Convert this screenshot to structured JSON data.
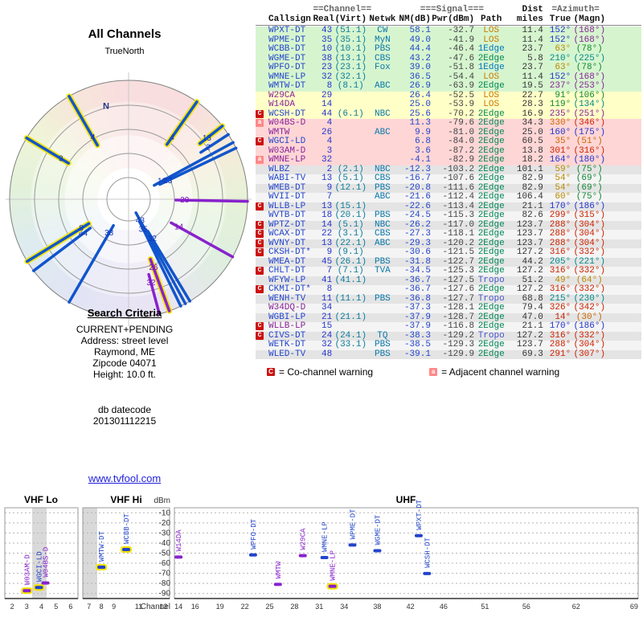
{
  "colors": {
    "accent_blue": "#2244cc",
    "accent_purple": "#8822cc",
    "warn_co": "#cc1111",
    "warn_adj": "#ff8888",
    "row_bg": {
      "grn": "#d6f5cf",
      "yel": "#ffffc8",
      "pnk": "#ffd6d6",
      "gry": "#e4e4e4",
      "wht": "#f4f4f4"
    },
    "text": {
      "blu": "#2233cc",
      "pur": "#882299",
      "red": "#cc2200",
      "org": "#cc6600",
      "gld": "#bb8800",
      "grn": "#118833",
      "tea": "#008888"
    },
    "path": {
      "LOS": "#cc7a00",
      "1Edge": "#0077bb",
      "2Edge": "#008855",
      "Tropo": "#4455cc"
    }
  },
  "chart_data": [
    {
      "type": "radar",
      "title": "All Channels",
      "subtitle": "TrueNorth",
      "north": "N",
      "note": "lines start at outer edge at station true azimuth; longer line = stronger signal (NM dB)",
      "spokes": [
        {
          "l": "43",
          "a": 151.5,
          "nm": 58.1,
          "c": "b",
          "h": 0
        },
        {
          "l": "35",
          "a": 154.0,
          "nm": 49.0,
          "c": "b",
          "h": 0
        },
        {
          "l": "32",
          "a": 149.0,
          "nm": 36.5,
          "c": "b",
          "h": 0
        },
        {
          "l": "10",
          "a": 61.5,
          "nm": 44.4,
          "c": "b",
          "h": 0
        },
        {
          "l": "23",
          "a": 64.5,
          "nm": 39.0,
          "c": "b",
          "h": 0
        },
        {
          "l": "38",
          "a": 210.0,
          "nm": 43.2,
          "c": "b",
          "h": 0
        },
        {
          "l": "44",
          "a": 233.0,
          "nm": 25.6,
          "c": "b",
          "h": 0
        },
        {
          "l": "8",
          "a": 238.5,
          "nm": 26.9,
          "c": "b",
          "h": 1
        },
        {
          "l": "29",
          "a": 91.0,
          "nm": 26.4,
          "c": "p",
          "h": 0
        },
        {
          "l": "14",
          "a": 119.0,
          "nm": 25.0,
          "c": "p",
          "h": 0
        },
        {
          "l": "4",
          "a": 330.0,
          "nm": 11.3,
          "c": "b",
          "h": 1
        },
        {
          "l": "26",
          "a": 160.0,
          "nm": 9.9,
          "c": "p",
          "h": 1
        },
        {
          "l": "4",
          "a": 35.0,
          "nm": 6.8,
          "c": "b",
          "h": 1
        },
        {
          "l": "3",
          "a": 301.0,
          "nm": 3.6,
          "c": "b",
          "h": 1
        },
        {
          "l": "32",
          "a": 165.0,
          "nm": -4.1,
          "c": "p",
          "h": 0
        },
        {
          "l": "2",
          "a": 57.0,
          "nm": -12.3,
          "c": "b",
          "h": 0
        },
        {
          "l": "13",
          "a": 52.0,
          "nm": -16.7,
          "c": "b",
          "h": 1
        }
      ]
    },
    {
      "type": "scatter",
      "bands": [
        "VHF Lo",
        "VHF Hi",
        "UHF"
      ],
      "ylabel": "dBm",
      "xlabel": "Channel",
      "ylim": [
        -95,
        -5
      ],
      "y_ticks": [
        -10,
        -20,
        -30,
        -40,
        -50,
        -60,
        -70,
        -80,
        -90
      ],
      "x_ticks": {
        "lo": [
          2,
          3,
          4,
          5,
          6
        ],
        "hi": [
          7,
          8,
          9,
          11,
          13
        ],
        "uhf": [
          14,
          16,
          19,
          22,
          25,
          28,
          31,
          34,
          38,
          42,
          46,
          51,
          56,
          62,
          69
        ]
      },
      "points": [
        {
          "cs": "W03AM-D",
          "ch": 3,
          "db": -87.2,
          "b": "lo",
          "c": "pur",
          "hl": 1,
          "dx": 0
        },
        {
          "cs": "WGCI-LD",
          "ch": 4,
          "db": -84.0,
          "b": "lo",
          "c": "blu",
          "hl": 1,
          "dx": -3
        },
        {
          "cs": "W04BS-D",
          "ch": 4,
          "db": -79.6,
          "b": "lo",
          "c": "pur",
          "hl": 0,
          "dx": 5
        },
        {
          "cs": "WMTW-DT",
          "ch": 8,
          "db": -63.9,
          "b": "hi",
          "c": "blu",
          "hl": 1,
          "dx": 0
        },
        {
          "cs": "WCBB-DT",
          "ch": 10,
          "db": -46.4,
          "b": "hi",
          "c": "blu",
          "hl": 1,
          "dx": 0
        },
        {
          "cs": "W14DA",
          "ch": 14,
          "db": -53.9,
          "b": "uhf",
          "c": "pur",
          "hl": 0,
          "dx": 0
        },
        {
          "cs": "WPFO-DT",
          "ch": 23,
          "db": -51.8,
          "b": "uhf",
          "c": "blu",
          "hl": 0,
          "dx": 0
        },
        {
          "cs": "WMTW",
          "ch": 26,
          "db": -81.0,
          "b": "uhf",
          "c": "pur",
          "hl": 0,
          "dx": 0
        },
        {
          "cs": "W29CA",
          "ch": 29,
          "db": -52.5,
          "b": "uhf",
          "c": "pur",
          "hl": 0,
          "dx": 0
        },
        {
          "cs": "WMNE-LP",
          "ch": 32,
          "db": -54.4,
          "b": "uhf",
          "c": "blu",
          "hl": 0,
          "dx": -4
        },
        {
          "cs": "WMNE-LP",
          "ch": 32,
          "db": -82.9,
          "b": "uhf",
          "c": "pur",
          "hl": 1,
          "dx": 6
        },
        {
          "cs": "WPME-DT",
          "ch": 35,
          "db": -41.9,
          "b": "uhf",
          "c": "blu",
          "hl": 0,
          "dx": 0
        },
        {
          "cs": "WGME-DT",
          "ch": 38,
          "db": -47.6,
          "b": "uhf",
          "c": "blu",
          "hl": 0,
          "dx": 0
        },
        {
          "cs": "WPXT-DT",
          "ch": 43,
          "db": -32.7,
          "b": "uhf",
          "c": "blu",
          "hl": 0,
          "dx": 0
        },
        {
          "cs": "WCSH-DT",
          "ch": 44,
          "db": -70.2,
          "b": "uhf",
          "c": "blu",
          "hl": 0,
          "dx": 0
        }
      ]
    }
  ],
  "search": {
    "heading": "Search Criteria",
    "lines": [
      "CURRENT+PENDING",
      "Address: street level",
      "Raymond, ME",
      "Zipcode 04071",
      "Height: 10.0 ft."
    ],
    "db_label": "db datecode",
    "db_code": "201301112215"
  },
  "link": {
    "text": "www.tvfool.com"
  },
  "legend": {
    "co_sym": "C",
    "co_text": "= Co-channel warning",
    "adj_sym": "a",
    "adj_text": "= Adjacent channel warning"
  },
  "table": {
    "group_headers": [
      "==Channel==",
      "===Signal===",
      "Dist",
      "=Azimuth="
    ],
    "columns": [
      "Callsign",
      "Real",
      "(Virt)",
      "Netwk",
      "NM(dB)",
      "Pwr(dBm)",
      "Path",
      "miles",
      "True",
      "(Magn)"
    ],
    "rows": [
      {
        "w": "",
        "cs": "WPXT-DT",
        "ac": false,
        "real": "43",
        "virt": "(51.1)",
        "net": "CW",
        "nm": "58.1",
        "pwr": "-32.7",
        "path": "LOS",
        "dist": "11.4",
        "tru": "152°",
        "mag": "(168°)",
        "tc": "blu",
        "mc": "pur",
        "bg": "grn"
      },
      {
        "w": "",
        "cs": "WPME-DT",
        "ac": false,
        "real": "35",
        "virt": "(35.1)",
        "net": "MyN",
        "nm": "49.0",
        "pwr": "-41.9",
        "path": "LOS",
        "dist": "11.4",
        "tru": "152°",
        "mag": "(168°)",
        "tc": "blu",
        "mc": "pur",
        "bg": "grn"
      },
      {
        "w": "",
        "cs": "WCBB-DT",
        "ac": false,
        "real": "10",
        "virt": "(10.1)",
        "net": "PBS",
        "nm": "44.4",
        "pwr": "-46.4",
        "path": "1Edge",
        "dist": "23.7",
        "tru": "63°",
        "mag": "(78°)",
        "tc": "gld",
        "mc": "grn",
        "bg": "grn"
      },
      {
        "w": "",
        "cs": "WGME-DT",
        "ac": false,
        "real": "38",
        "virt": "(13.1)",
        "net": "CBS",
        "nm": "43.2",
        "pwr": "-47.6",
        "path": "2Edge",
        "dist": "5.8",
        "tru": "210°",
        "mag": "(225°)",
        "tc": "tea",
        "mc": "tea",
        "bg": "grn"
      },
      {
        "w": "",
        "cs": "WPFO-DT",
        "ac": false,
        "real": "23",
        "virt": "(23.1)",
        "net": "Fox",
        "nm": "39.0",
        "pwr": "-51.8",
        "path": "1Edge",
        "dist": "23.7",
        "tru": "63°",
        "mag": "(78°)",
        "tc": "gld",
        "mc": "grn",
        "bg": "grn"
      },
      {
        "w": "",
        "cs": "WMNE-LP",
        "ac": false,
        "real": "32",
        "virt": "(32.1)",
        "net": "",
        "nm": "36.5",
        "pwr": "-54.4",
        "path": "LOS",
        "dist": "11.4",
        "tru": "152°",
        "mag": "(168°)",
        "tc": "blu",
        "mc": "pur",
        "bg": "grn"
      },
      {
        "w": "",
        "cs": "WMTW-DT",
        "ac": false,
        "real": "8",
        "virt": "(8.1)",
        "net": "ABC",
        "nm": "26.9",
        "pwr": "-63.9",
        "path": "2Edge",
        "dist": "19.5",
        "tru": "237°",
        "mag": "(253°)",
        "tc": "pur",
        "mc": "pur",
        "bg": "grn"
      },
      {
        "w": "",
        "cs": "W29CA",
        "ac": true,
        "real": "29",
        "virt": "",
        "net": "",
        "nm": "26.4",
        "pwr": "-52.5",
        "path": "LOS",
        "dist": "22.7",
        "tru": "91°",
        "mag": "(106°)",
        "tc": "grn",
        "mc": "grn",
        "bg": "yel"
      },
      {
        "w": "",
        "cs": "W14DA",
        "ac": true,
        "real": "14",
        "virt": "",
        "net": "",
        "nm": "25.0",
        "pwr": "-53.9",
        "path": "LOS",
        "dist": "28.3",
        "tru": "119°",
        "mag": "(134°)",
        "tc": "grn",
        "mc": "tea",
        "bg": "yel"
      },
      {
        "w": "C",
        "cs": "WCSH-DT",
        "ac": false,
        "real": "44",
        "virt": "(6.1)",
        "net": "NBC",
        "nm": "25.6",
        "pwr": "-70.2",
        "path": "2Edge",
        "dist": "16.9",
        "tru": "235°",
        "mag": "(251°)",
        "tc": "pur",
        "mc": "pur",
        "bg": "yel"
      },
      {
        "w": "a",
        "cs": "W04BS-D",
        "ac": true,
        "real": "4",
        "virt": "",
        "net": "",
        "nm": "11.3",
        "pwr": "-79.6",
        "path": "2Edge",
        "dist": "34.3",
        "tru": "330°",
        "mag": "(346°)",
        "tc": "org",
        "mc": "red",
        "bg": "pnk"
      },
      {
        "w": "",
        "cs": "WMTW",
        "ac": true,
        "real": "26",
        "virt": "",
        "net": "ABC",
        "nm": "9.9",
        "pwr": "-81.0",
        "path": "2Edge",
        "dist": "25.0",
        "tru": "160°",
        "mag": "(175°)",
        "tc": "blu",
        "mc": "blu",
        "bg": "pnk"
      },
      {
        "w": "C",
        "cs": "WGCI-LD",
        "ac": false,
        "real": "4",
        "virt": "",
        "net": "",
        "nm": "6.8",
        "pwr": "-84.0",
        "path": "2Edge",
        "dist": "60.5",
        "tru": "35°",
        "mag": "(51°)",
        "tc": "org",
        "mc": "org",
        "bg": "pnk"
      },
      {
        "w": "",
        "cs": "W03AM-D",
        "ac": true,
        "real": "3",
        "virt": "",
        "net": "",
        "nm": "3.6",
        "pwr": "-87.2",
        "path": "2Edge",
        "dist": "13.8",
        "tru": "301°",
        "mag": "(316°)",
        "tc": "red",
        "mc": "red",
        "bg": "pnk"
      },
      {
        "w": "a",
        "cs": "WMNE-LP",
        "ac": true,
        "real": "32",
        "virt": "",
        "net": "",
        "nm": "-4.1",
        "pwr": "-82.9",
        "path": "2Edge",
        "dist": "18.2",
        "tru": "164°",
        "mag": "(180°)",
        "tc": "blu",
        "mc": "blu",
        "bg": "pnk"
      },
      {
        "w": "",
        "cs": "WLBZ",
        "ac": false,
        "real": "2",
        "virt": "(2.1)",
        "net": "NBC",
        "nm": "-12.3",
        "pwr": "-103.2",
        "path": "2Edge",
        "dist": "101.1",
        "tru": "59°",
        "mag": "(75°)",
        "tc": "gld",
        "mc": "grn",
        "bg": "gry"
      },
      {
        "w": "",
        "cs": "WABI-TV",
        "ac": false,
        "real": "13",
        "virt": "(5.1)",
        "net": "CBS",
        "nm": "-16.7",
        "pwr": "-107.6",
        "path": "2Edge",
        "dist": "82.9",
        "tru": "54°",
        "mag": "(69°)",
        "tc": "gld",
        "mc": "grn",
        "bg": "wht"
      },
      {
        "w": "",
        "cs": "WMEB-DT",
        "ac": false,
        "real": "9",
        "virt": "(12.1)",
        "net": "PBS",
        "nm": "-20.8",
        "pwr": "-111.6",
        "path": "2Edge",
        "dist": "82.9",
        "tru": "54°",
        "mag": "(69°)",
        "tc": "gld",
        "mc": "grn",
        "bg": "gry"
      },
      {
        "w": "",
        "cs": "WVII-DT",
        "ac": false,
        "real": "7",
        "virt": "",
        "net": "ABC",
        "nm": "-21.6",
        "pwr": "-112.4",
        "path": "2Edge",
        "dist": "106.4",
        "tru": "60°",
        "mag": "(75°)",
        "tc": "gld",
        "mc": "grn",
        "bg": "wht"
      },
      {
        "w": "C",
        "cs": "WLLB-LP",
        "ac": false,
        "real": "13",
        "virt": "(15.1)",
        "net": "",
        "nm": "-22.6",
        "pwr": "-113.4",
        "path": "2Edge",
        "dist": "21.1",
        "tru": "170°",
        "mag": "(186°)",
        "tc": "blu",
        "mc": "blu",
        "bg": "gry"
      },
      {
        "w": "",
        "cs": "WVTB-DT",
        "ac": false,
        "real": "18",
        "virt": "(20.1)",
        "net": "PBS",
        "nm": "-24.5",
        "pwr": "-115.3",
        "path": "2Edge",
        "dist": "82.6",
        "tru": "299°",
        "mag": "(315°)",
        "tc": "red",
        "mc": "red",
        "bg": "wht"
      },
      {
        "w": "C",
        "cs": "WPTZ-DT",
        "ac": false,
        "real": "14",
        "virt": "(5.1)",
        "net": "NBC",
        "nm": "-26.2",
        "pwr": "-117.0",
        "path": "2Edge",
        "dist": "123.7",
        "tru": "288°",
        "mag": "(304°)",
        "tc": "red",
        "mc": "red",
        "bg": "gry"
      },
      {
        "w": "C",
        "cs": "WCAX-DT",
        "ac": false,
        "real": "22",
        "virt": "(3.1)",
        "net": "CBS",
        "nm": "-27.3",
        "pwr": "-118.1",
        "path": "2Edge",
        "dist": "123.7",
        "tru": "288°",
        "mag": "(304°)",
        "tc": "red",
        "mc": "red",
        "bg": "wht"
      },
      {
        "w": "C",
        "cs": "WVNY-DT",
        "ac": false,
        "real": "13",
        "virt": "(22.1)",
        "net": "ABC",
        "nm": "-29.3",
        "pwr": "-120.2",
        "path": "2Edge",
        "dist": "123.7",
        "tru": "288°",
        "mag": "(304°)",
        "tc": "red",
        "mc": "red",
        "bg": "gry"
      },
      {
        "w": "C",
        "cs": "CKSH-DT*",
        "ac": false,
        "real": "9",
        "virt": "(9.1)",
        "net": "",
        "nm": "-30.6",
        "pwr": "-121.5",
        "path": "2Edge",
        "dist": "127.2",
        "tru": "316°",
        "mag": "(332°)",
        "tc": "red",
        "mc": "red",
        "bg": "wht"
      },
      {
        "w": "",
        "cs": "WMEA-DT",
        "ac": false,
        "real": "45",
        "virt": "(26.1)",
        "net": "PBS",
        "nm": "-31.8",
        "pwr": "-122.7",
        "path": "2Edge",
        "dist": "44.2",
        "tru": "205°",
        "mag": "(221°)",
        "tc": "tea",
        "mc": "tea",
        "bg": "gry"
      },
      {
        "w": "C",
        "cs": "CHLT-DT",
        "ac": false,
        "real": "7",
        "virt": "(7.1)",
        "net": "TVA",
        "nm": "-34.5",
        "pwr": "-125.3",
        "path": "2Edge",
        "dist": "127.2",
        "tru": "316°",
        "mag": "(332°)",
        "tc": "red",
        "mc": "red",
        "bg": "wht"
      },
      {
        "w": "",
        "cs": "WFYW-LP",
        "ac": false,
        "real": "41",
        "virt": "(41.1)",
        "net": "",
        "nm": "-36.7",
        "pwr": "-127.5",
        "path": "Tropo",
        "dist": "51.2",
        "tru": "49°",
        "mag": "(64°)",
        "tc": "gld",
        "mc": "gld",
        "bg": "gry"
      },
      {
        "w": "C",
        "cs": "CKMI-DT*",
        "ac": false,
        "real": "8",
        "virt": "",
        "net": "",
        "nm": "-36.7",
        "pwr": "-127.6",
        "path": "2Edge",
        "dist": "127.2",
        "tru": "316°",
        "mag": "(332°)",
        "tc": "red",
        "mc": "red",
        "bg": "wht"
      },
      {
        "w": "",
        "cs": "WENH-TV",
        "ac": false,
        "real": "11",
        "virt": "(11.1)",
        "net": "PBS",
        "nm": "-36.8",
        "pwr": "-127.7",
        "path": "Tropo",
        "dist": "68.8",
        "tru": "215°",
        "mag": "(230°)",
        "tc": "tea",
        "mc": "tea",
        "bg": "gry"
      },
      {
        "w": "",
        "cs": "W34DQ-D",
        "ac": true,
        "real": "34",
        "virt": "",
        "net": "",
        "nm": "-37.3",
        "pwr": "-128.1",
        "path": "2Edge",
        "dist": "79.4",
        "tru": "326°",
        "mag": "(342°)",
        "tc": "red",
        "mc": "red",
        "bg": "wht"
      },
      {
        "w": "",
        "cs": "WGBI-LP",
        "ac": false,
        "real": "21",
        "virt": "(21.1)",
        "net": "",
        "nm": "-37.9",
        "pwr": "-128.7",
        "path": "2Edge",
        "dist": "47.0",
        "tru": "14°",
        "mag": "(30°)",
        "tc": "red",
        "mc": "org",
        "bg": "gry"
      },
      {
        "w": "C",
        "cs": "WLLB-LP",
        "ac": true,
        "real": "15",
        "virt": "",
        "net": "",
        "nm": "-37.9",
        "pwr": "-116.8",
        "path": "2Edge",
        "dist": "21.1",
        "tru": "170°",
        "mag": "(186°)",
        "tc": "blu",
        "mc": "blu",
        "bg": "wht"
      },
      {
        "w": "C",
        "cs": "CIVS-DT",
        "ac": false,
        "real": "24",
        "virt": "(24.1)",
        "net": "TQ",
        "nm": "-38.3",
        "pwr": "-129.2",
        "path": "Tropo",
        "dist": "127.2",
        "tru": "316°",
        "mag": "(332°)",
        "tc": "red",
        "mc": "red",
        "bg": "gry"
      },
      {
        "w": "",
        "cs": "WETK-DT",
        "ac": false,
        "real": "32",
        "virt": "(33.1)",
        "net": "PBS",
        "nm": "-38.5",
        "pwr": "-129.3",
        "path": "2Edge",
        "dist": "123.7",
        "tru": "288°",
        "mag": "(304°)",
        "tc": "red",
        "mc": "red",
        "bg": "wht"
      },
      {
        "w": "",
        "cs": "WLED-TV",
        "ac": false,
        "real": "48",
        "virt": "",
        "net": "PBS",
        "nm": "-39.1",
        "pwr": "-129.9",
        "path": "2Edge",
        "dist": "69.3",
        "tru": "291°",
        "mag": "(307°)",
        "tc": "red",
        "mc": "red",
        "bg": "gry"
      }
    ]
  }
}
